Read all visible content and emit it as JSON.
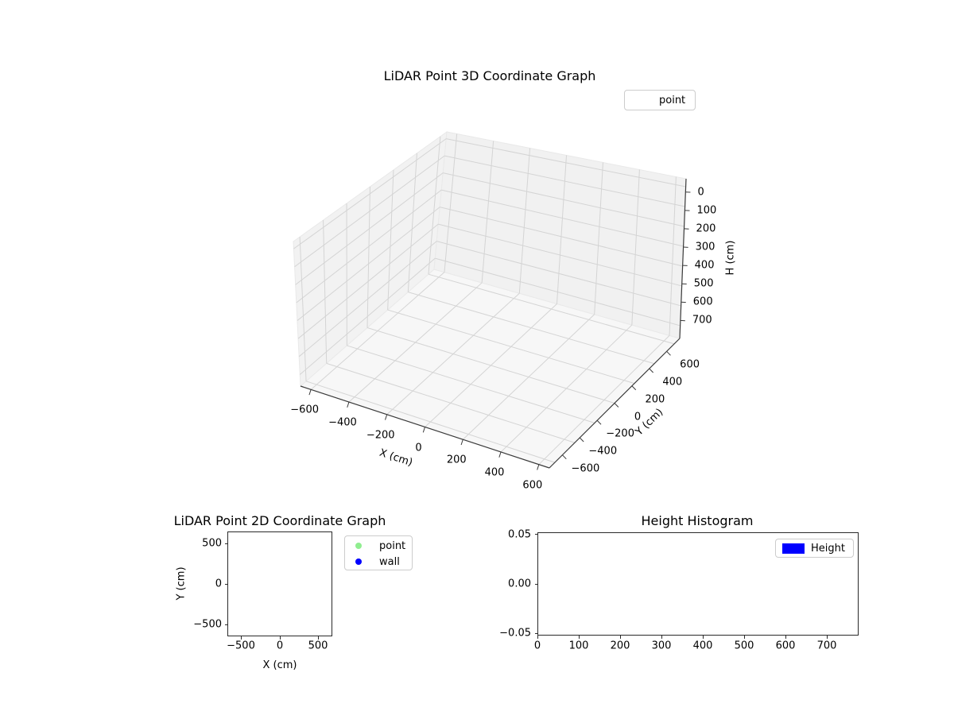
{
  "chart_data": [
    {
      "type": "scatter3d",
      "title": "LiDAR Point 3D Coordinate Graph",
      "xlabel": "X (cm)",
      "ylabel": "Y (cm)",
      "zlabel": "H (cm)",
      "xticks": [
        -600,
        -400,
        -200,
        0,
        200,
        400,
        600
      ],
      "xtick_labels": [
        "−600",
        "−400",
        "−200",
        "0",
        "200",
        "400",
        "600"
      ],
      "yticks": [
        -600,
        -400,
        -200,
        0,
        200,
        400,
        600
      ],
      "ytick_labels": [
        "−600",
        "−400",
        "−200",
        "0",
        "200",
        "400",
        "600"
      ],
      "zticks": [
        0,
        100,
        200,
        300,
        400,
        500,
        600,
        700
      ],
      "ztick_labels": [
        "0",
        "100",
        "200",
        "300",
        "400",
        "500",
        "600",
        "700"
      ],
      "zaxis_inverted": true,
      "grid": true,
      "legend": [
        {
          "label": "point",
          "marker": "none"
        }
      ],
      "legend_position": "upper right",
      "series": [
        {
          "name": "point",
          "points": []
        }
      ]
    },
    {
      "type": "scatter",
      "title": "LiDAR Point 2D Coordinate Graph",
      "xlabel": "X (cm)",
      "ylabel": "Y (cm)",
      "xticks": [
        -500,
        0,
        500
      ],
      "xtick_labels": [
        "−500",
        "0",
        "500"
      ],
      "yticks": [
        500,
        0,
        -500
      ],
      "ytick_labels": [
        "500",
        "0",
        "−500"
      ],
      "grid": false,
      "legend": [
        {
          "label": "point",
          "color": "#90EE90"
        },
        {
          "label": "wall",
          "color": "#0000FF"
        }
      ],
      "legend_position": "outside upper right",
      "series": [
        {
          "name": "point",
          "points": []
        },
        {
          "name": "wall",
          "points": []
        }
      ]
    },
    {
      "type": "histogram",
      "title": "Height Histogram",
      "xticks": [
        0,
        100,
        200,
        300,
        400,
        500,
        600,
        700
      ],
      "xtick_labels": [
        "0",
        "100",
        "200",
        "300",
        "400",
        "500",
        "600",
        "700"
      ],
      "yticks": [
        0.05,
        0.0,
        -0.05
      ],
      "ytick_labels": [
        "0.05",
        "0.00",
        "−0.05"
      ],
      "ylim": [
        -0.05,
        0.05
      ],
      "grid": false,
      "legend": [
        {
          "label": "Height",
          "color": "#0000FF"
        }
      ],
      "legend_position": "upper right",
      "values": []
    }
  ],
  "colors": {
    "point": "#90EE90",
    "wall": "#0000FF",
    "height_bar": "#0000FF",
    "pane_wall": "#f2f2f2",
    "pane_floor": "#f7f7f7",
    "grid_line": "#d4d4d4",
    "axis_line": "#3a3a3a"
  }
}
